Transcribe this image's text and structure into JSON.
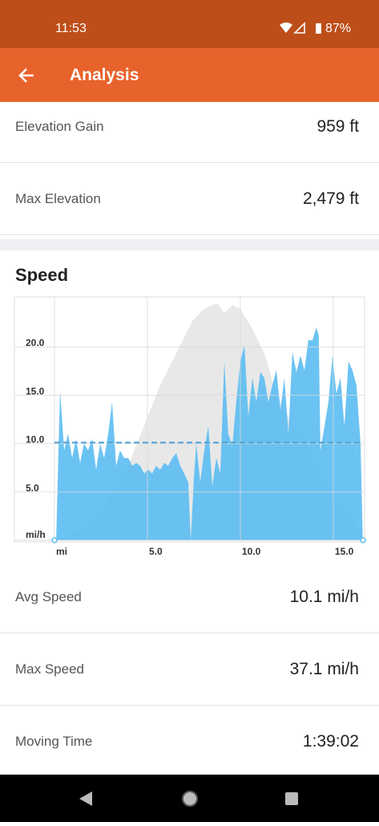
{
  "status_bar": {
    "time": "11:53",
    "battery": "87%"
  },
  "header": {
    "title": "Analysis"
  },
  "stats_top": [
    {
      "label": "Elevation Gain",
      "value": "959 ft"
    },
    {
      "label": "Max Elevation",
      "value": "2,479 ft"
    }
  ],
  "section_title": "Speed",
  "chart_data": {
    "type": "area",
    "series": [
      {
        "name": "Elevation",
        "color": "#e8e8e8",
        "axis": "y2",
        "x": [
          0,
          1.38,
          2.67,
          3.97,
          4.83,
          5.69,
          6.55,
          7.41,
          8.06,
          8.49,
          8.79,
          9.14,
          9.57,
          10,
          10.65,
          11.29,
          11.94,
          12.59,
          13.23,
          13.88,
          14.53,
          15.17,
          15.82,
          16.47,
          16.59
        ],
        "values": [
          1500,
          1543,
          1643,
          1809,
          1975,
          2141,
          2274,
          2407,
          2457,
          2473,
          2479,
          2440,
          2473,
          2457,
          2374,
          2274,
          2108,
          2008,
          1942,
          1842,
          1743,
          1676,
          1610,
          1543,
          1500
        ]
      },
      {
        "name": "Speed",
        "color": "#5bbdf2",
        "x": [
          0.09,
          0.3,
          0.52,
          0.73,
          0.95,
          1.16,
          1.38,
          1.59,
          1.81,
          2.03,
          2.24,
          2.46,
          2.67,
          2.89,
          3.1,
          3.32,
          3.53,
          3.75,
          3.97,
          4.18,
          4.4,
          4.61,
          4.83,
          5.04,
          5.26,
          5.47,
          5.69,
          5.91,
          6.12,
          6.34,
          6.55,
          6.77,
          6.98,
          7.2,
          7.33,
          7.5,
          7.63,
          7.84,
          8.06,
          8.28,
          8.49,
          8.71,
          8.92,
          9.14,
          9.35,
          9.57,
          9.78,
          10,
          10.22,
          10.43,
          10.65,
          10.86,
          11.08,
          11.29,
          11.51,
          11.72,
          11.94,
          12.16,
          12.37,
          12.59,
          12.8,
          13.02,
          13.23,
          13.45,
          13.66,
          13.88,
          14.09,
          14.22,
          14.31,
          14.53,
          14.74,
          14.96,
          15.17,
          15.39,
          15.6,
          15.82,
          16.03,
          16.25,
          16.47,
          16.59
        ],
        "values": [
          0,
          15.5,
          9.3,
          11,
          8.5,
          10.5,
          8,
          10,
          9.3,
          10.5,
          7.3,
          10,
          8.5,
          11,
          14.3,
          7.7,
          9.3,
          8.5,
          8.5,
          7.7,
          8,
          7.7,
          6.9,
          7.3,
          6.9,
          7.7,
          7.3,
          8,
          7.7,
          8.5,
          9,
          7.7,
          6.9,
          6,
          0,
          6.4,
          10,
          6,
          9.3,
          11.8,
          5.6,
          8.5,
          6.9,
          18.5,
          11,
          9.8,
          14.3,
          18.5,
          20.2,
          12.8,
          16.8,
          14.3,
          17.4,
          16.8,
          14.3,
          16,
          17.6,
          13.5,
          16.8,
          11,
          19.5,
          17.4,
          19.1,
          17.6,
          20.7,
          20.7,
          22,
          21.2,
          9.3,
          11.8,
          14.3,
          19.1,
          15.2,
          16.8,
          11.8,
          18.5,
          17.6,
          16,
          10,
          0
        ]
      }
    ],
    "average": 10.1,
    "xlim": [
      0,
      16.6
    ],
    "ylim": [
      0,
      25
    ],
    "y2lim": [
      1500,
      2500
    ],
    "xticks": [
      {
        "value": 0,
        "label": "mi"
      },
      {
        "value": 5,
        "label": "5.0"
      },
      {
        "value": 10,
        "label": "10.0"
      },
      {
        "value": 15,
        "label": "15.0"
      }
    ],
    "yticks": [
      {
        "value": 0,
        "label": "mi/h"
      },
      {
        "value": 5,
        "label": "5.0"
      },
      {
        "value": 10,
        "label": "10.0"
      },
      {
        "value": 15,
        "label": "15.0"
      },
      {
        "value": 20,
        "label": "20.0"
      }
    ],
    "grid": true
  },
  "stats_bottom": [
    {
      "label": "Avg Speed",
      "value": "10.1 mi/h"
    },
    {
      "label": "Max Speed",
      "value": "37.1 mi/h"
    },
    {
      "label": "Moving Time",
      "value": "1:39:02"
    }
  ]
}
